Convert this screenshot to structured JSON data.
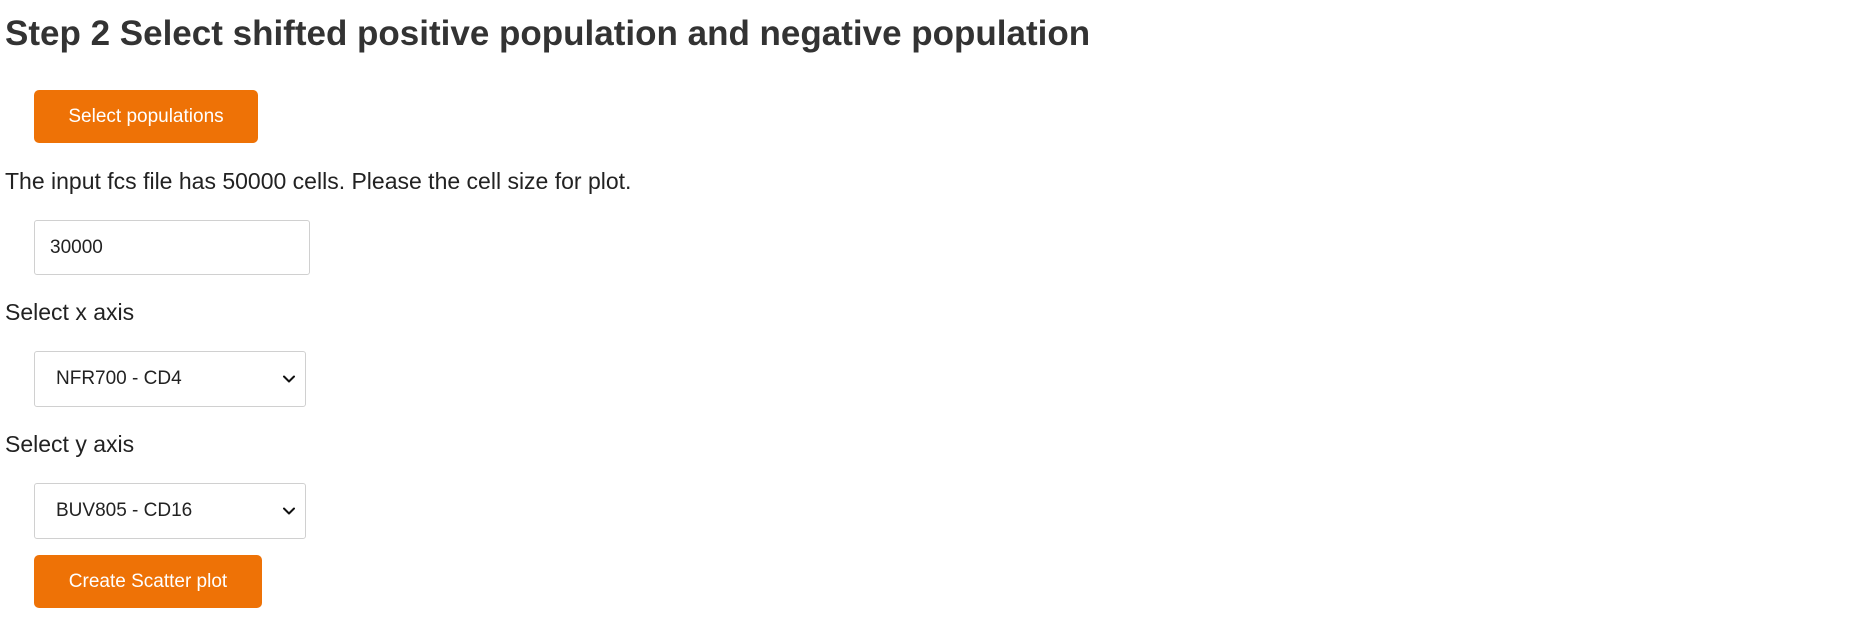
{
  "header": {
    "title": "Step 2 Select shifted positive population and negative population"
  },
  "select_populations": {
    "label": "Select populations"
  },
  "cell_size": {
    "info": "The input fcs file has 50000 cells. Please the cell size for plot.",
    "value": "30000"
  },
  "x_axis": {
    "label": "Select x axis",
    "selected": "NFR700 - CD4"
  },
  "y_axis": {
    "label": "Select y axis",
    "selected": "BUV805 - CD16"
  },
  "scatter": {
    "label": "Create Scatter plot"
  },
  "colors": {
    "accent": "#ee7206",
    "text": "#333333",
    "border": "#d0d0d0"
  }
}
